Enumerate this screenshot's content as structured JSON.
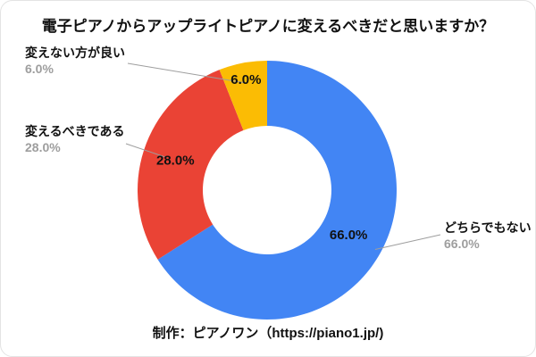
{
  "chart_data": {
    "type": "pie",
    "subtype": "donut",
    "title": "電子ピアノからアップライトピアノに変えるべきだと思いますか？",
    "categories": [
      "どちらでもない",
      "変えるべきである",
      "変えない方が良い"
    ],
    "values": [
      66.0,
      28.0,
      6.0
    ],
    "value_labels": [
      "66.0%",
      "28.0%",
      "6.0%"
    ],
    "colors": [
      "#4285F4",
      "#EA4335",
      "#FBBC04"
    ],
    "legend_position": "outside-callouts",
    "leader_line_color": "#9e9e9e",
    "callout_percent_color": "#9e9e9e",
    "background": "#ffffff"
  },
  "footer": {
    "credit": "制作：ピアノワン（https://piano1.jp/)"
  }
}
